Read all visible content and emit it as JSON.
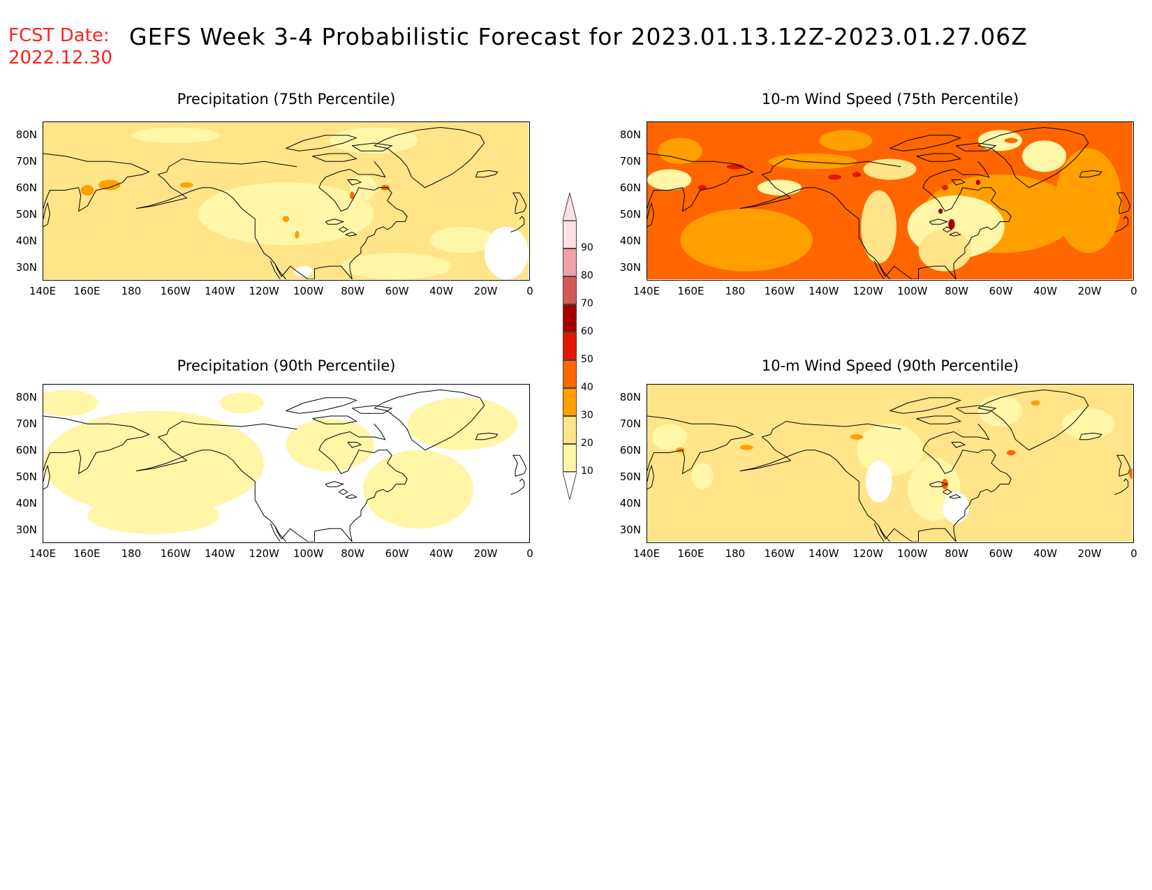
{
  "header": {
    "fcst_label": "FCST Date:",
    "fcst_date": "2022.12.30",
    "title": "GEFS Week 3-4 Probabilistic Forecast for 2023.01.13.12Z-2023.01.27.06Z"
  },
  "axes": {
    "lat_ticks": [
      "80N",
      "70N",
      "60N",
      "50N",
      "40N",
      "30N"
    ],
    "lon_ticks": [
      "140E",
      "160E",
      "180",
      "160W",
      "140W",
      "120W",
      "100W",
      "80W",
      "60W",
      "40W",
      "20W",
      "0"
    ]
  },
  "colorbar": {
    "levels": [
      "10",
      "20",
      "30",
      "40",
      "50",
      "60",
      "70",
      "80",
      "90"
    ],
    "colors": [
      "#ffffff",
      "#fff6a8",
      "#ffe48a",
      "#ff9f00",
      "#ff6600",
      "#e01800",
      "#a50000",
      "#d45a5a",
      "#f0a0a8",
      "#fde0e6"
    ]
  },
  "panels": [
    {
      "title": "Precipitation (75th Percentile)"
    },
    {
      "title": "10-m Wind Speed (75th Percentile)"
    },
    {
      "title": "Precipitation (90th Percentile)"
    },
    {
      "title": "10-m Wind Speed (90th Percentile)"
    }
  ]
}
